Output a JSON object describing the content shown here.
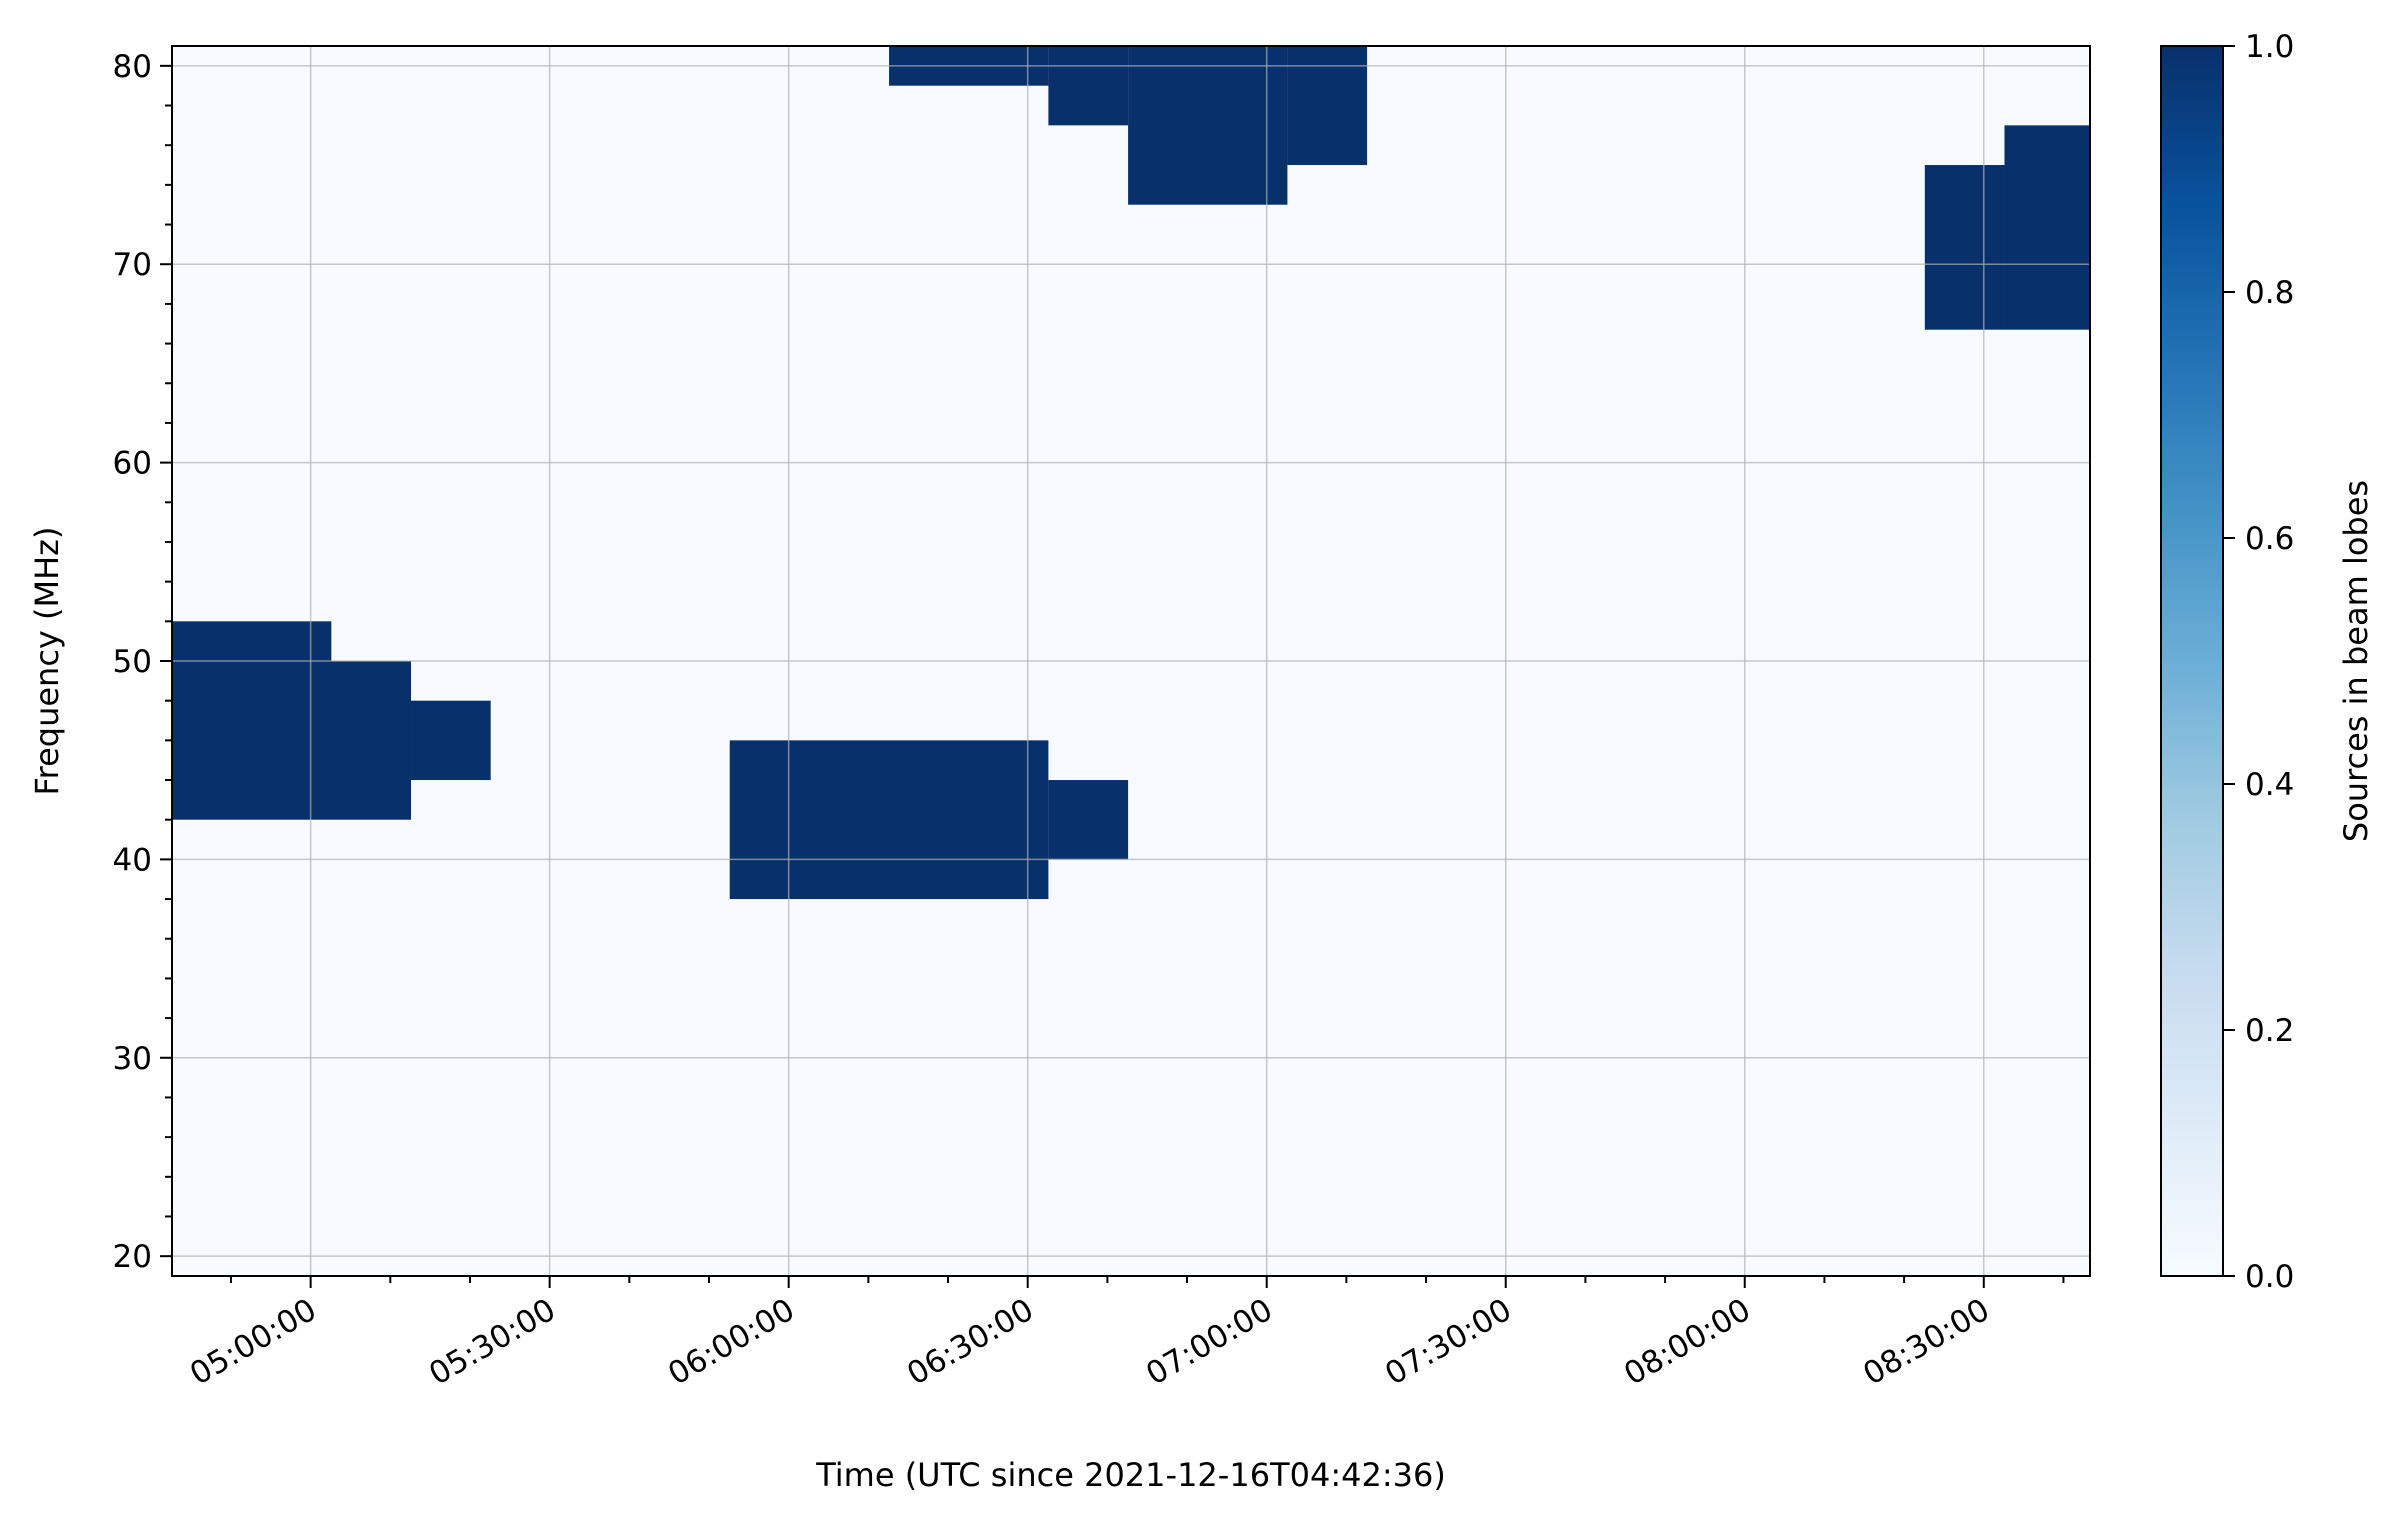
{
  "chart_data": {
    "type": "heatmap",
    "title": "",
    "xlabel": "Time (UTC since 2021-12-16T04:42:36)",
    "ylabel": "Frequency (MHz)",
    "x_unit": "UTC time",
    "xlim": [
      "04:42:36",
      "08:43:20"
    ],
    "ylim": [
      19,
      81
    ],
    "x_ticks": [
      "05:00:00",
      "05:30:00",
      "06:00:00",
      "06:30:00",
      "07:00:00",
      "07:30:00",
      "08:00:00",
      "08:30:00"
    ],
    "y_ticks": [
      20,
      30,
      40,
      50,
      60,
      70,
      80
    ],
    "grid": true,
    "colorbar": {
      "label": "Sources in beam lobes",
      "range": [
        0,
        1
      ],
      "ticks": [
        "0.0",
        "0.2",
        "0.4",
        "0.6",
        "0.8",
        "1.0"
      ],
      "colormap": "Blues",
      "low_color": "#f7fbff",
      "high_color": "#08306b"
    },
    "cells": [
      {
        "t_start": "04:42:36",
        "t_end": "05:02:36",
        "f_min": 50,
        "f_max": 52,
        "value": 1
      },
      {
        "t_start": "04:42:36",
        "t_end": "05:12:36",
        "f_min": 42,
        "f_max": 50,
        "value": 1
      },
      {
        "t_start": "05:12:36",
        "t_end": "05:22:36",
        "f_min": 44,
        "f_max": 48,
        "value": 1
      },
      {
        "t_start": "05:52:36",
        "t_end": "06:32:36",
        "f_min": 38,
        "f_max": 46,
        "value": 1
      },
      {
        "t_start": "06:32:36",
        "t_end": "06:42:36",
        "f_min": 40,
        "f_max": 44,
        "value": 1
      },
      {
        "t_start": "06:12:36",
        "t_end": "06:32:36",
        "f_min": 79,
        "f_max": 81,
        "value": 1
      },
      {
        "t_start": "06:32:36",
        "t_end": "06:42:36",
        "f_min": 77,
        "f_max": 81,
        "value": 1
      },
      {
        "t_start": "06:42:36",
        "t_end": "07:02:36",
        "f_min": 73,
        "f_max": 81,
        "value": 1
      },
      {
        "t_start": "07:02:36",
        "t_end": "07:12:36",
        "f_min": 75,
        "f_max": 81,
        "value": 1
      },
      {
        "t_start": "08:22:36",
        "t_end": "08:32:36",
        "f_min": 66.7,
        "f_max": 75,
        "value": 1
      },
      {
        "t_start": "08:32:36",
        "t_end": "08:43:20",
        "f_min": 66.7,
        "f_max": 77,
        "value": 1
      }
    ]
  }
}
